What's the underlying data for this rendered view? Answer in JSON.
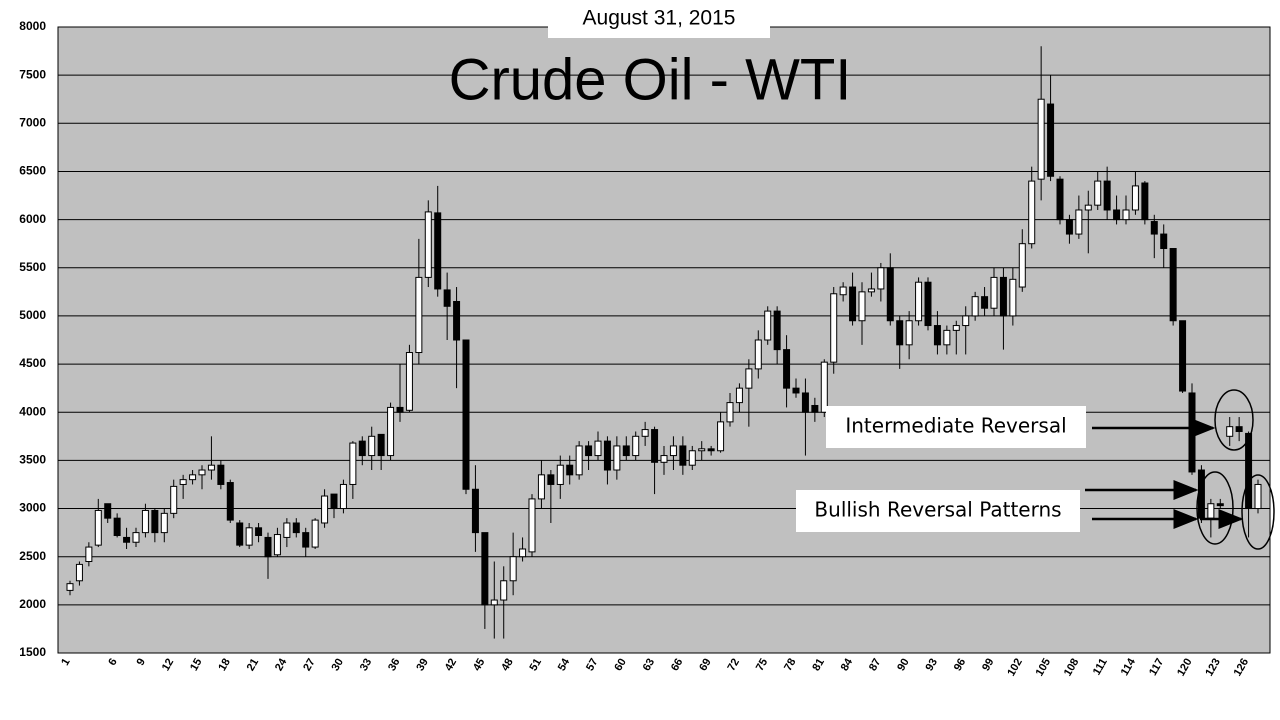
{
  "chart_data": {
    "type": "candlestick",
    "title": "Crude Oil - WTI",
    "subtitle": "August 31, 2015",
    "annotations": [
      "Intermediate Reversal",
      "Bullish Reversal Patterns"
    ],
    "categories": [
      "1",
      null,
      null,
      null,
      null,
      "6",
      null,
      null,
      "9",
      null,
      null,
      "12",
      null,
      null,
      "15",
      null,
      null,
      "18",
      null,
      null,
      "21",
      null,
      null,
      "24",
      null,
      null,
      "27",
      null,
      null,
      "30",
      null,
      null,
      "33",
      null,
      null,
      "36",
      null,
      null,
      "39",
      null,
      null,
      "42",
      null,
      null,
      "45",
      null,
      null,
      "48",
      null,
      null,
      "51",
      null,
      null,
      "54",
      null,
      null,
      "57",
      null,
      null,
      "60",
      null,
      null,
      "63",
      null,
      null,
      "66",
      null,
      null,
      "69",
      null,
      null,
      "72",
      null,
      null,
      "75",
      null,
      null,
      "78",
      null,
      null,
      "81",
      null,
      null,
      "84",
      null,
      null,
      "87",
      null,
      null,
      "90",
      null,
      null,
      "93",
      null,
      null,
      "96",
      null,
      null,
      "99",
      null,
      null,
      "102",
      null,
      null,
      "105",
      null,
      null,
      "108",
      null,
      null,
      "111",
      null,
      null,
      "114",
      null,
      null,
      "117",
      null,
      null,
      "120",
      null,
      null,
      "123",
      null,
      null,
      "126",
      null
    ],
    "open": [
      2150,
      2250,
      2450,
      2620,
      3050,
      2900,
      2700,
      2650,
      2750,
      2980,
      2750,
      2950,
      3250,
      3300,
      3350,
      3400,
      3450,
      3270,
      2850,
      2620,
      2800,
      2700,
      2520,
      2700,
      2850,
      2750,
      2600,
      2850,
      3150,
      3000,
      3250,
      3700,
      3550,
      3770,
      3550,
      4050,
      4020,
      4620,
      5400,
      6070,
      5270,
      5150,
      4750,
      3200,
      2750,
      2000,
      2050,
      2250,
      2500,
      2550,
      3100,
      3350,
      3250,
      3450,
      3350,
      3650,
      3550,
      3700,
      3400,
      3650,
      3550,
      3750,
      3820,
      3480,
      3550,
      3650,
      3450,
      3600,
      3620,
      3600,
      3900,
      4100,
      4250,
      4450,
      4750,
      5050,
      4650,
      4250,
      4200,
      4070,
      4000,
      4520,
      5220,
      5300,
      4950,
      5250,
      5280,
      5500,
      4950,
      4700,
      4950,
      5350,
      4900,
      4700,
      4850,
      4900,
      5000,
      5200,
      5080,
      5400,
      5000,
      5300,
      5750,
      6420,
      7200,
      6420,
      6000,
      5850,
      6100,
      6150,
      6400,
      6100,
      6000,
      6100,
      6380,
      5980,
      5850,
      5700,
      4950,
      4200,
      3400,
      2900,
      3050,
      3750,
      3850,
      3780,
      3000
    ],
    "high": [
      2250,
      2450,
      2650,
      3100,
      3050,
      2950,
      2800,
      2800,
      3050,
      3000,
      3000,
      3300,
      3350,
      3400,
      3450,
      3750,
      3500,
      3300,
      2880,
      2850,
      2850,
      2750,
      2800,
      2900,
      2900,
      2800,
      2900,
      3200,
      3150,
      3300,
      3700,
      3750,
      3850,
      3770,
      4100,
      4500,
      4700,
      5800,
      6200,
      6350,
      5450,
      5300,
      4750,
      3450,
      2750,
      2450,
      2400,
      2750,
      2700,
      3150,
      3500,
      3400,
      3550,
      3550,
      3700,
      3700,
      3800,
      3750,
      3750,
      3750,
      3800,
      3900,
      3850,
      3650,
      3750,
      3750,
      3650,
      3700,
      3650,
      4000,
      4200,
      4300,
      4550,
      4850,
      5100,
      5100,
      4800,
      4350,
      4350,
      4150,
      4550,
      5300,
      5350,
      5450,
      5350,
      5450,
      5550,
      5650,
      5000,
      5050,
      5400,
      5400,
      5050,
      4900,
      4950,
      5100,
      5250,
      5300,
      5500,
      5500,
      5500,
      5900,
      6550,
      7800,
      7500,
      6450,
      6050,
      6250,
      6300,
      6500,
      6550,
      6250,
      6250,
      6500,
      6400,
      6050,
      5950,
      5700,
      4950,
      4300,
      3450,
      3100,
      3100,
      3950,
      3950,
      3800,
      3300
    ],
    "low": [
      2100,
      2200,
      2400,
      2600,
      2850,
      2700,
      2580,
      2600,
      2700,
      2650,
      2650,
      2900,
      3100,
      3250,
      3200,
      3300,
      3200,
      2850,
      2600,
      2580,
      2650,
      2270,
      2500,
      2600,
      2700,
      2500,
      2580,
      2800,
      2900,
      2950,
      3100,
      3450,
      3400,
      3400,
      3500,
      3900,
      4000,
      4500,
      5300,
      5200,
      4750,
      4250,
      3150,
      2550,
      1750,
      1650,
      1650,
      2100,
      2450,
      2500,
      3000,
      2850,
      3100,
      3250,
      3300,
      3400,
      3500,
      3250,
      3300,
      3500,
      3500,
      3650,
      3150,
      3350,
      3400,
      3350,
      3400,
      3500,
      3550,
      3580,
      3850,
      4000,
      3850,
      4350,
      4700,
      4500,
      4050,
      4150,
      3550,
      3900,
      3950,
      4400,
      5150,
      4900,
      4700,
      5200,
      5150,
      4900,
      4450,
      4550,
      4900,
      4850,
      4600,
      4600,
      4600,
      4600,
      4950,
      5000,
      5000,
      4650,
      4900,
      5250,
      5700,
      6200,
      6400,
      5950,
      5750,
      5800,
      5650,
      6100,
      6000,
      5950,
      5950,
      6050,
      5950,
      5600,
      5500,
      4900,
      4200,
      3350,
      2850,
      2700,
      3000,
      3650,
      3700,
      2700,
      2950
    ],
    "close": [
      2220,
      2420,
      2600,
      2980,
      2900,
      2720,
      2650,
      2750,
      2980,
      2750,
      2950,
      3230,
      3300,
      3350,
      3400,
      3450,
      3250,
      2880,
      2620,
      2800,
      2720,
      2500,
      2730,
      2850,
      2750,
      2600,
      2880,
      3130,
      3000,
      3250,
      3680,
      3550,
      3750,
      3550,
      4050,
      4000,
      4620,
      5400,
      6080,
      5280,
      5100,
      4750,
      3200,
      2750,
      2000,
      2050,
      2250,
      2500,
      2580,
      3100,
      3350,
      3250,
      3450,
      3350,
      3650,
      3550,
      3700,
      3400,
      3650,
      3550,
      3750,
      3820,
      3480,
      3550,
      3650,
      3450,
      3600,
      3620,
      3600,
      3900,
      4100,
      4250,
      4450,
      4750,
      5050,
      4650,
      4250,
      4200,
      4000,
      4000,
      4520,
      5230,
      5300,
      4950,
      5250,
      5280,
      5500,
      4950,
      4700,
      4950,
      5350,
      4900,
      4700,
      4850,
      4900,
      5000,
      5200,
      5080,
      5400,
      5000,
      5380,
      5750,
      6400,
      7250,
      6450,
      6000,
      5850,
      6100,
      6150,
      6400,
      6100,
      6000,
      6100,
      6350,
      6000,
      5850,
      5700,
      4950,
      4220,
      3380,
      2900,
      3050,
      3030,
      3850,
      3800,
      3000,
      3250
    ],
    "up_color": "#ffffff",
    "down_color": "#000000",
    "ylim": [
      1500,
      8000
    ],
    "yticks": [
      1500,
      2000,
      2500,
      3000,
      3500,
      4000,
      4500,
      5000,
      5500,
      6000,
      6500,
      7000,
      7500,
      8000
    ],
    "grid": true
  }
}
